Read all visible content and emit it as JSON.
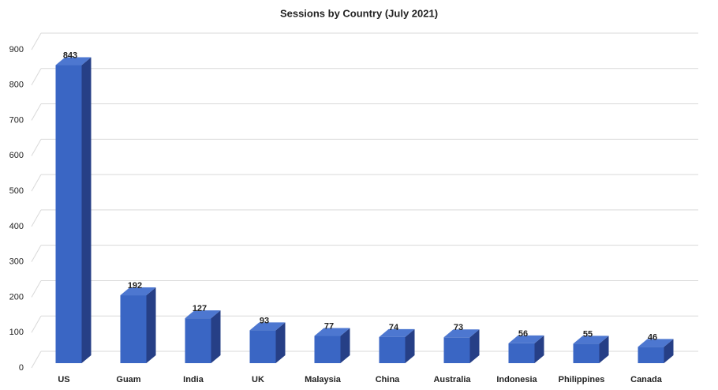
{
  "chart_data": {
    "type": "bar3d",
    "title": "Sessions by Country (July 2021)",
    "categories": [
      "US",
      "Guam",
      "India",
      "UK",
      "Malaysia",
      "China",
      "Australia",
      "Indonesia",
      "Philippines",
      "Canada"
    ],
    "values": [
      843,
      192,
      127,
      93,
      77,
      74,
      73,
      56,
      55,
      46
    ],
    "color": "#3a66c4",
    "ylim": [
      0,
      900
    ],
    "yticks": [
      0,
      100,
      200,
      300,
      400,
      500,
      600,
      700,
      800,
      900
    ],
    "grid": true
  }
}
